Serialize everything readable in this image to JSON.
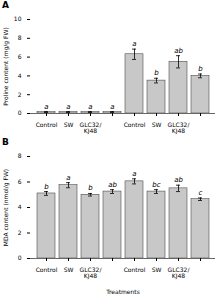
{
  "chart_data": [
    {
      "type": "bar",
      "title": "A",
      "ylabel": "Proline content (mg/g FW)",
      "categories": [
        "Control",
        "SW",
        "GLC32/\nKJ48",
        null,
        "Control",
        "SW",
        "GLC32/\nKJ48",
        null
      ],
      "values": [
        0.15,
        0.15,
        0.15,
        0.15,
        6.3,
        3.5,
        5.5,
        4.0
      ],
      "errors": [
        0.05,
        0.05,
        0.05,
        0.05,
        0.55,
        0.25,
        0.65,
        0.2
      ],
      "annotations": [
        "a",
        "a",
        "a",
        "a",
        "a",
        "b",
        "ab",
        "b"
      ],
      "color": "#c8c8c8",
      "ylim": [
        0,
        10
      ],
      "yticks": [
        0,
        2,
        4,
        6,
        8,
        10
      ],
      "grid": false
    },
    {
      "type": "bar",
      "title": "B",
      "ylabel": "MDA content (nmol/g FW)",
      "xlabel": "Treatments",
      "categories": [
        "Control",
        "SW",
        "GLC32/\nKJ48",
        null,
        "Control",
        "SW",
        "GLC32/\nKJ48",
        null
      ],
      "values": [
        5.1,
        5.75,
        5.0,
        5.25,
        6.05,
        5.25,
        5.5,
        4.65
      ],
      "errors": [
        0.15,
        0.2,
        0.1,
        0.15,
        0.2,
        0.15,
        0.25,
        0.1
      ],
      "annotations": [
        "b",
        "a",
        "b",
        "ab",
        "a",
        "bc",
        "ab",
        "c"
      ],
      "color": "#c8c8c8",
      "ylim": [
        0,
        8
      ],
      "yticks": [
        0,
        2,
        4,
        6,
        8
      ],
      "grid": false
    }
  ]
}
